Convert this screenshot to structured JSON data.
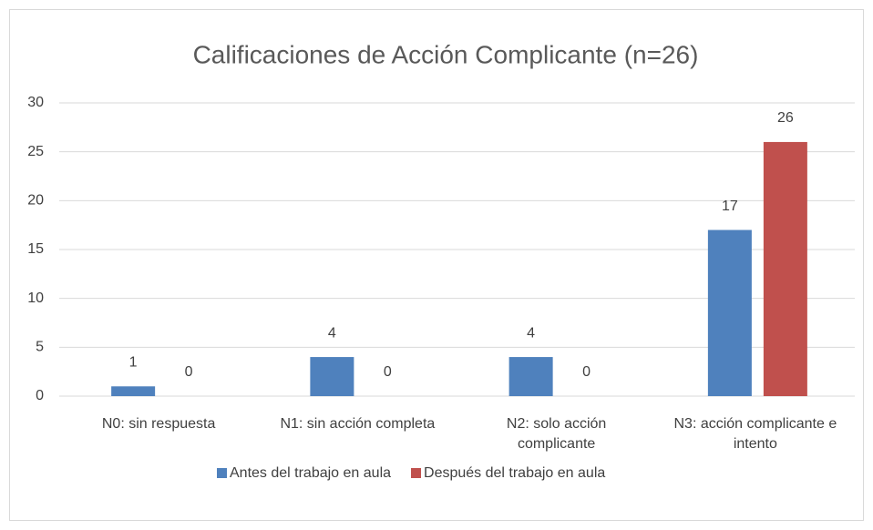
{
  "chart_data": {
    "type": "bar",
    "title": "Calificaciones de Acción Complicante (n=26)",
    "categories": [
      "N0: sin respuesta",
      "N1: sin acción completa",
      "N2: solo acción complicante",
      "N3: acción complicante e intento"
    ],
    "series": [
      {
        "name": "Antes del trabajo en aula",
        "color": "#4f81bd",
        "values": [
          1,
          4,
          4,
          17
        ]
      },
      {
        "name": "Después del trabajo en aula",
        "color": "#c0504d",
        "values": [
          0,
          0,
          0,
          26
        ]
      }
    ],
    "ylim": [
      0,
      30
    ],
    "yticks": [
      0,
      5,
      10,
      15,
      20,
      25,
      30
    ],
    "grid": true,
    "legend": "bottom"
  }
}
